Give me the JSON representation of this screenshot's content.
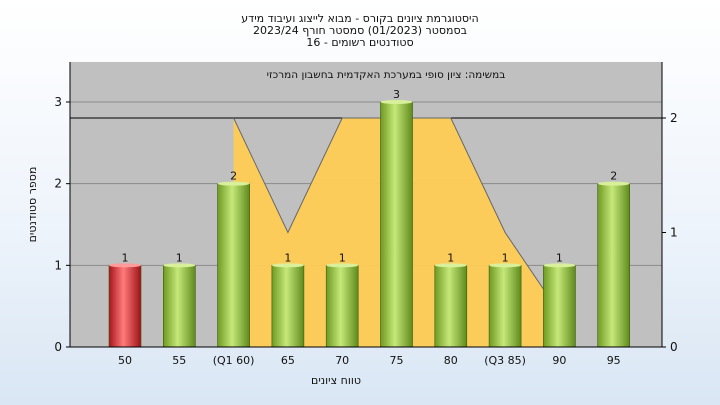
{
  "chart_data": {
    "type": "bar",
    "title_lines": [
      "היסטוגרמת ציונים בקורס - מבוא לייצוג ועיבוד מידע",
      "בסמסטר  (01/2023)  סמסטר חורף 2023/24",
      "סטודנטים רשומים - 16"
    ],
    "subtitle": "במשימה: ציון סופי במערכת האקדמית בחשבון המרכזי",
    "xlabel": "טווח ציונים",
    "ylabel": "מספר סטודנטים",
    "categories": [
      "50",
      "55",
      "(Q1 60)",
      "65",
      "70",
      "75",
      "80",
      "(Q3 85)",
      "90",
      "95"
    ],
    "values": [
      1,
      1,
      2,
      1,
      1,
      3,
      1,
      1,
      1,
      2
    ],
    "value_labels": [
      "1",
      "1",
      "2",
      "1",
      "1",
      "3",
      "1",
      "1",
      "1",
      "2"
    ],
    "highlight_index": 0,
    "ylim": [
      0,
      3
    ],
    "y_ticks": [
      "0",
      "1",
      "2",
      "3"
    ],
    "y2lim": [
      0,
      2
    ],
    "y2_ticks": [
      "0",
      "1",
      "2"
    ],
    "overlay_series": {
      "type": "area",
      "values": [
        null,
        null,
        2,
        1,
        2,
        2,
        2,
        1,
        0.3,
        null
      ]
    },
    "grid": true,
    "colors": {
      "bar": "#8fc23a",
      "bar_highlight": "#d0202a",
      "overlay_fill": "#ffcc55",
      "plot_background": "#c0c0c0",
      "page_background": "#eef4fb"
    }
  }
}
